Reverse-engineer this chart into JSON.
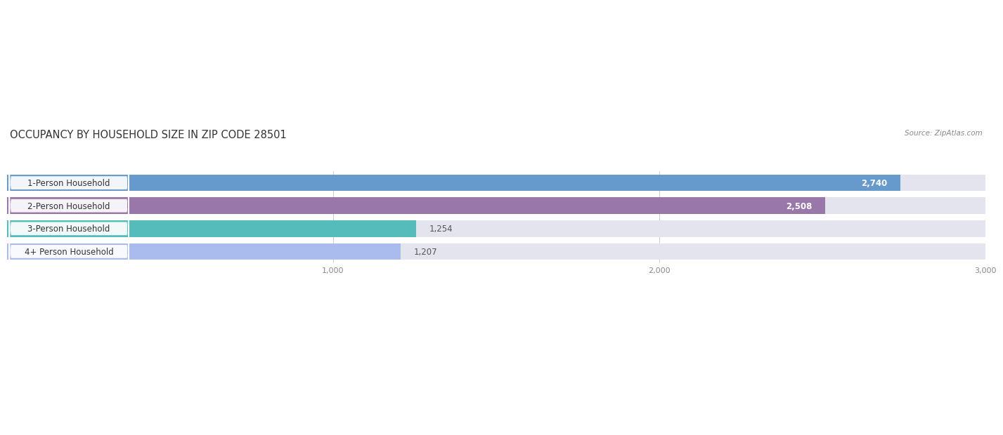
{
  "title": "OCCUPANCY BY HOUSEHOLD SIZE IN ZIP CODE 28501",
  "source": "Source: ZipAtlas.com",
  "categories": [
    "1-Person Household",
    "2-Person Household",
    "3-Person Household",
    "4+ Person Household"
  ],
  "values": [
    2740,
    2508,
    1254,
    1207
  ],
  "bar_colors": [
    "#6699cc",
    "#9977aa",
    "#55bbbb",
    "#aabbee"
  ],
  "bar_bg_color": "#e4e4ee",
  "xlim": [
    0,
    3000
  ],
  "xticks": [
    1000,
    2000,
    3000
  ],
  "background_color": "#ffffff",
  "title_fontsize": 10.5,
  "source_fontsize": 7.5,
  "label_fontsize": 8.5,
  "value_fontsize": 8.5,
  "tick_fontsize": 8,
  "bar_height": 0.72,
  "label_bg_color": "#ffffff"
}
